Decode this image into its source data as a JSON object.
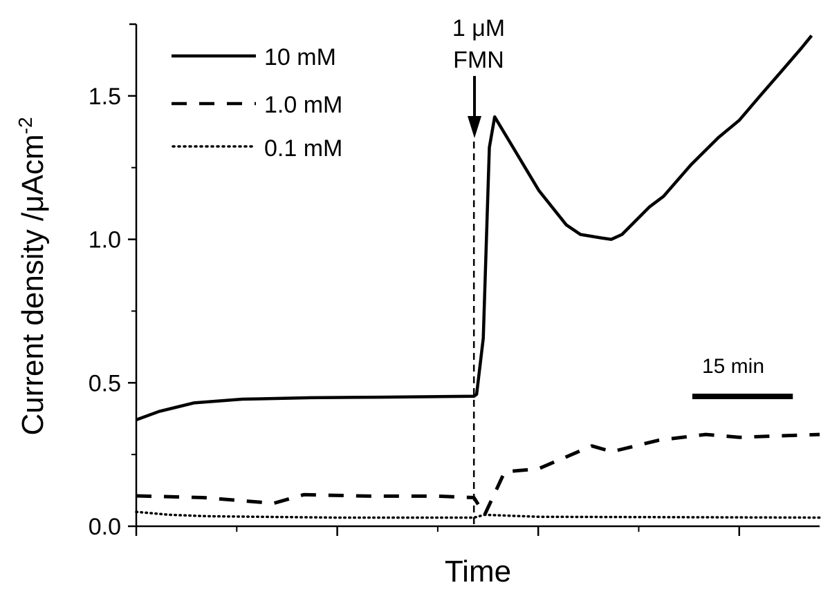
{
  "chart_data": {
    "type": "line",
    "title": "",
    "xlabel": "Time",
    "ylabel": "Current density /μAcm",
    "ylabel_superscript": "-2",
    "xlim": [
      0,
      102
    ],
    "ylim": [
      0,
      1.75
    ],
    "x_major_ticks": [
      0,
      30,
      60,
      90
    ],
    "x_minor_ticks": [
      15,
      45,
      75
    ],
    "y_ticks": [
      0.0,
      0.5,
      1.0,
      1.5
    ],
    "y_tick_labels": [
      "0.0",
      "0.5",
      "1.0",
      "1.5"
    ],
    "y_minor_ticks": [
      0.25,
      0.75,
      1.25,
      1.75
    ],
    "grid": false,
    "legend_position": "top-left",
    "series": [
      {
        "name": "10 mM",
        "style": "solid",
        "x": [
          0,
          3.4,
          8.6,
          15.8,
          26,
          36.4,
          50.4,
          50.8,
          51.8,
          52.7,
          53.5,
          56,
          60.1,
          64.2,
          66.3,
          69.4,
          70.9,
          72.5,
          76.6,
          78.7,
          82.8,
          86.9,
          90,
          93.1,
          96.2,
          99.3,
          100.8
        ],
        "y": [
          0.371,
          0.4,
          0.43,
          0.443,
          0.448,
          0.45,
          0.453,
          0.46,
          0.655,
          1.32,
          1.427,
          1.33,
          1.17,
          1.05,
          1.017,
          1.005,
          1.0,
          1.017,
          1.113,
          1.15,
          1.26,
          1.355,
          1.415,
          1.5,
          1.583,
          1.667,
          1.71
        ]
      },
      {
        "name": "1.0 mM",
        "style": "dashed",
        "x": [
          0,
          10,
          20.5,
          25,
          35,
          45,
          50.4,
          52,
          55,
          60,
          68,
          71,
          78,
          85,
          90,
          102
        ],
        "y": [
          0.106,
          0.1,
          0.08,
          0.11,
          0.105,
          0.105,
          0.1,
          0.04,
          0.19,
          0.2,
          0.28,
          0.26,
          0.3,
          0.32,
          0.31,
          0.32
        ]
      },
      {
        "name": "0.1 mM",
        "style": "dotted",
        "x": [
          0,
          5,
          10.6,
          30,
          50.4,
          52,
          60,
          102
        ],
        "y": [
          0.05,
          0.04,
          0.035,
          0.03,
          0.03,
          0.04,
          0.033,
          0.03
        ]
      }
    ],
    "annotations": {
      "injection_line1": "1 μM",
      "injection_line2": "FMN",
      "injection_x": 50.4,
      "scale_bar_label": "15 min",
      "scale_bar_minutes": 15
    }
  }
}
